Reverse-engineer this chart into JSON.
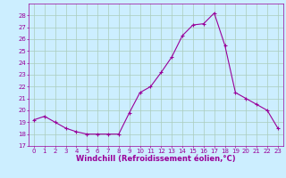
{
  "x": [
    0,
    1,
    2,
    3,
    4,
    5,
    6,
    7,
    8,
    9,
    10,
    11,
    12,
    13,
    14,
    15,
    16,
    17,
    18,
    19,
    20,
    21,
    22,
    23
  ],
  "y": [
    19.2,
    19.5,
    19.0,
    18.5,
    18.2,
    18.0,
    18.0,
    18.0,
    18.0,
    19.8,
    21.5,
    22.0,
    23.2,
    24.5,
    26.3,
    27.2,
    27.3,
    28.2,
    25.5,
    21.5,
    21.0,
    20.5,
    20.0,
    18.5
  ],
  "title": "",
  "xlabel": "Windchill (Refroidissement éolien,°C)",
  "ylabel": "",
  "ylim": [
    17,
    29
  ],
  "xlim": [
    -0.5,
    23.5
  ],
  "yticks": [
    17,
    18,
    19,
    20,
    21,
    22,
    23,
    24,
    25,
    26,
    27,
    28
  ],
  "xticks": [
    0,
    1,
    2,
    3,
    4,
    5,
    6,
    7,
    8,
    9,
    10,
    11,
    12,
    13,
    14,
    15,
    16,
    17,
    18,
    19,
    20,
    21,
    22,
    23
  ],
  "line_color": "#990099",
  "marker": "+",
  "bg_color": "#cceeff",
  "grid_color": "#aaccbb",
  "tick_color": "#990099",
  "label_color": "#990099",
  "tick_fontsize": 5.0,
  "xlabel_fontsize": 6.0
}
